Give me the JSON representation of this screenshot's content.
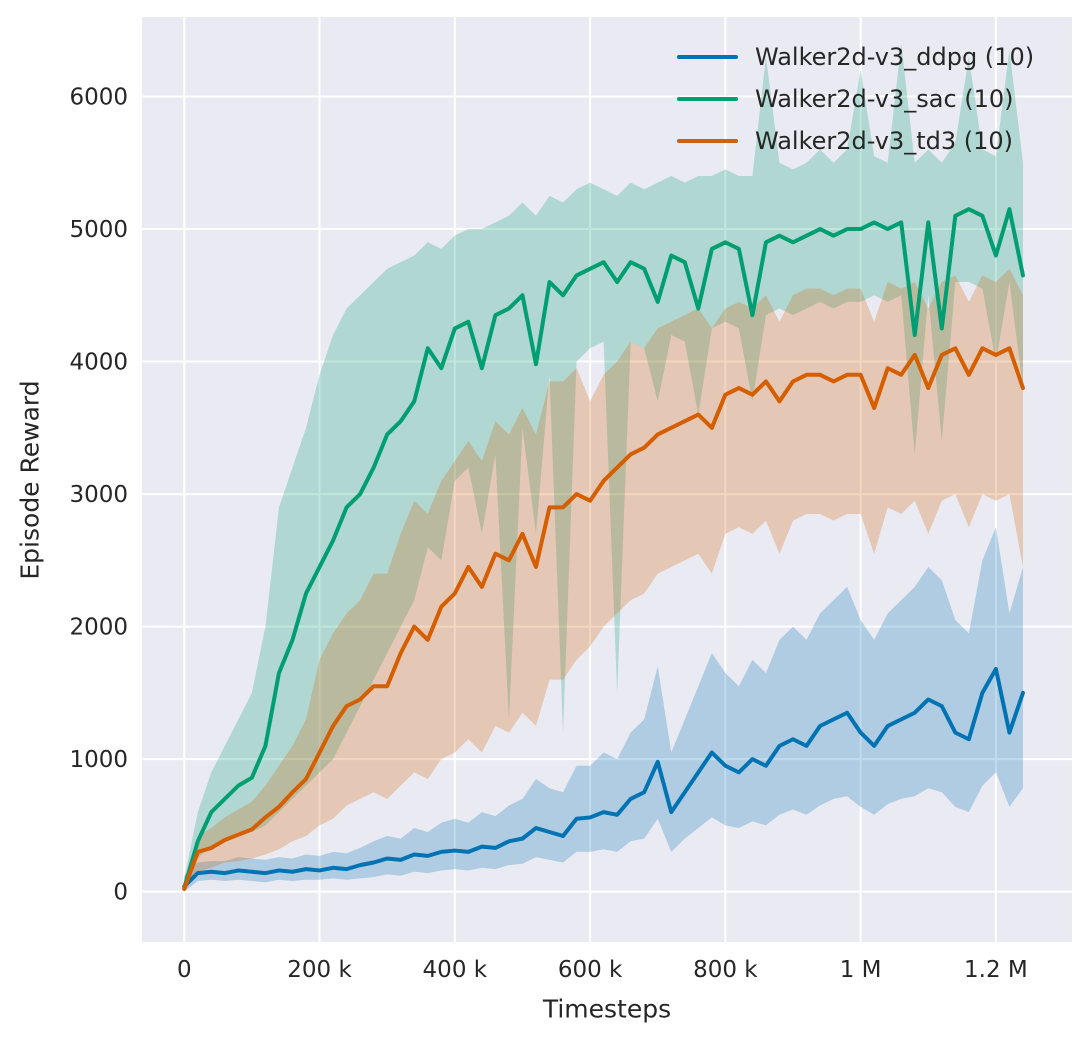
{
  "chart_data": {
    "type": "line",
    "title": "",
    "xlabel": "Timesteps",
    "ylabel": "Episode Reward",
    "grid": true,
    "legend_position": "upper right",
    "plot_background": "#eaeaf2",
    "grid_color": "#ffffff",
    "text_color": "#262626",
    "band_opacity": 0.25,
    "xlim": [
      -62500,
      1312500
    ],
    "ylim": [
      -380,
      6600
    ],
    "x_tick_values": [
      0,
      200000,
      400000,
      600000,
      800000,
      1000000,
      1200000
    ],
    "x_tick_labels": [
      "0",
      "200 k",
      "400 k",
      "600 k",
      "800 k",
      "1 M",
      "1.2 M"
    ],
    "y_tick_values": [
      0,
      1000,
      2000,
      3000,
      4000,
      5000,
      6000
    ],
    "y_tick_labels": [
      "0",
      "1000",
      "2000",
      "3000",
      "4000",
      "5000",
      "6000"
    ],
    "x_values_thousands": [
      0,
      20,
      40,
      60,
      80,
      100,
      120,
      140,
      160,
      180,
      200,
      220,
      240,
      260,
      280,
      300,
      320,
      340,
      360,
      380,
      400,
      420,
      440,
      460,
      480,
      500,
      520,
      540,
      560,
      580,
      600,
      620,
      640,
      660,
      680,
      700,
      720,
      740,
      760,
      780,
      800,
      820,
      840,
      860,
      880,
      900,
      920,
      940,
      960,
      980,
      1000,
      1020,
      1040,
      1060,
      1080,
      1100,
      1120,
      1140,
      1160,
      1180,
      1200,
      1220,
      1240
    ],
    "series": [
      {
        "name": "ddpg",
        "legend_label": "Walker2d-v3_ddpg (10)",
        "color": "#0173b2",
        "mean": [
          40,
          140,
          150,
          140,
          160,
          150,
          140,
          160,
          150,
          170,
          160,
          180,
          170,
          200,
          220,
          250,
          240,
          280,
          270,
          300,
          310,
          300,
          340,
          330,
          380,
          400,
          480,
          450,
          420,
          550,
          560,
          600,
          580,
          700,
          750,
          980,
          600,
          750,
          900,
          1050,
          950,
          900,
          1000,
          950,
          1100,
          1150,
          1100,
          1250,
          1300,
          1350,
          1200,
          1100,
          1250,
          1300,
          1350,
          1450,
          1400,
          1200,
          1150,
          1500,
          1680,
          1200,
          1500
        ],
        "band_low": [
          0,
          80,
          90,
          80,
          90,
          80,
          70,
          90,
          80,
          90,
          90,
          100,
          90,
          100,
          110,
          130,
          120,
          150,
          140,
          160,
          170,
          160,
          180,
          170,
          200,
          210,
          260,
          240,
          220,
          300,
          300,
          320,
          300,
          380,
          400,
          550,
          300,
          400,
          480,
          560,
          500,
          480,
          530,
          500,
          580,
          620,
          580,
          650,
          700,
          720,
          640,
          580,
          660,
          700,
          720,
          780,
          750,
          640,
          600,
          800,
          900,
          640,
          780
        ],
        "band_high": [
          120,
          220,
          230,
          230,
          260,
          250,
          240,
          260,
          250,
          280,
          270,
          300,
          290,
          330,
          380,
          420,
          400,
          480,
          450,
          520,
          550,
          520,
          600,
          570,
          650,
          700,
          850,
          780,
          750,
          950,
          950,
          1050,
          1000,
          1200,
          1300,
          1700,
          1050,
          1300,
          1550,
          1800,
          1650,
          1550,
          1750,
          1650,
          1900,
          2000,
          1900,
          2100,
          2200,
          2300,
          2050,
          1900,
          2100,
          2200,
          2300,
          2450,
          2350,
          2050,
          1950,
          2500,
          2750,
          2100,
          2450
        ]
      },
      {
        "name": "sac",
        "legend_label": "Walker2d-v3_sac (10)",
        "color": "#029e73",
        "mean": [
          30,
          380,
          600,
          700,
          800,
          860,
          1100,
          1650,
          1900,
          2250,
          2450,
          2650,
          2900,
          3000,
          3200,
          3450,
          3550,
          3700,
          4100,
          3950,
          4250,
          4300,
          3950,
          4350,
          4400,
          4500,
          3980,
          4600,
          4500,
          4650,
          4700,
          4750,
          4600,
          4750,
          4700,
          4450,
          4800,
          4750,
          4400,
          4850,
          4900,
          4850,
          4350,
          4900,
          4950,
          4900,
          4950,
          5000,
          4950,
          5000,
          5000,
          5050,
          5000,
          5050,
          4200,
          5050,
          4250,
          5100,
          5150,
          5100,
          4800,
          5150,
          4650
        ],
        "band_low": [
          0,
          250,
          350,
          400,
          450,
          450,
          500,
          600,
          700,
          800,
          900,
          1000,
          1200,
          1400,
          1600,
          1800,
          2000,
          2200,
          2600,
          2500,
          3100,
          3200,
          2700,
          3300,
          1300,
          3500,
          2700,
          3900,
          1200,
          4000,
          4100,
          4150,
          1500,
          4150,
          4100,
          3700,
          4200,
          4150,
          3600,
          4250,
          4300,
          4250,
          3700,
          4350,
          4400,
          4350,
          4400,
          4450,
          4400,
          4450,
          4450,
          4500,
          4450,
          4500,
          3300,
          4500,
          3400,
          4600,
          4600,
          4550,
          4000,
          4600,
          3800
        ],
        "band_high": [
          100,
          600,
          900,
          1100,
          1300,
          1500,
          2000,
          2900,
          3200,
          3500,
          3900,
          4200,
          4400,
          4500,
          4600,
          4700,
          4750,
          4800,
          4900,
          4850,
          4950,
          5000,
          5000,
          5050,
          5100,
          5200,
          5100,
          5250,
          5200,
          5300,
          5350,
          5300,
          5250,
          5350,
          5300,
          5350,
          5400,
          5350,
          5400,
          5400,
          5450,
          5400,
          5400,
          6300,
          5500,
          5450,
          5500,
          5600,
          5500,
          5600,
          6200,
          5550,
          5500,
          6400,
          5500,
          5600,
          5500,
          5650,
          6300,
          5600,
          5550,
          6350,
          5500
        ]
      },
      {
        "name": "td3",
        "legend_label": "Walker2d-v3_td3 (10)",
        "color": "#d55e00",
        "mean": [
          20,
          300,
          330,
          390,
          430,
          470,
          560,
          640,
          750,
          850,
          1050,
          1250,
          1400,
          1450,
          1550,
          1550,
          1800,
          2000,
          1900,
          2150,
          2250,
          2450,
          2300,
          2550,
          2500,
          2700,
          2450,
          2900,
          2900,
          3000,
          2950,
          3100,
          3200,
          3300,
          3350,
          3450,
          3500,
          3550,
          3600,
          3500,
          3750,
          3800,
          3750,
          3850,
          3700,
          3850,
          3900,
          3900,
          3850,
          3900,
          3900,
          3650,
          3950,
          3900,
          4050,
          3800,
          4050,
          4100,
          3900,
          4100,
          4050,
          4100,
          3800
        ],
        "band_low": [
          0,
          150,
          180,
          220,
          230,
          250,
          280,
          320,
          380,
          420,
          500,
          550,
          650,
          700,
          750,
          700,
          800,
          900,
          850,
          1000,
          1050,
          1150,
          1050,
          1250,
          1200,
          1350,
          1250,
          1600,
          1600,
          1750,
          1850,
          2000,
          2100,
          2200,
          2250,
          2400,
          2450,
          2500,
          2550,
          2400,
          2700,
          2750,
          2700,
          2800,
          2550,
          2800,
          2850,
          2850,
          2800,
          2850,
          2850,
          2550,
          2900,
          2850,
          2950,
          2700,
          2950,
          3000,
          2750,
          3000,
          2950,
          3000,
          2450
        ],
        "band_high": [
          80,
          420,
          480,
          560,
          620,
          680,
          800,
          950,
          1100,
          1300,
          1750,
          1950,
          2100,
          2200,
          2400,
          2400,
          2700,
          2950,
          2850,
          3100,
          3250,
          3400,
          3250,
          3550,
          3450,
          3650,
          3450,
          3850,
          3850,
          3950,
          3700,
          3900,
          4000,
          4150,
          4100,
          4250,
          4300,
          4350,
          4400,
          4250,
          4400,
          4450,
          4400,
          4500,
          4300,
          4500,
          4550,
          4550,
          4500,
          4550,
          4550,
          4300,
          4600,
          4550,
          4600,
          4400,
          4600,
          4650,
          4450,
          4650,
          4600,
          4700,
          4500
        ]
      }
    ]
  }
}
